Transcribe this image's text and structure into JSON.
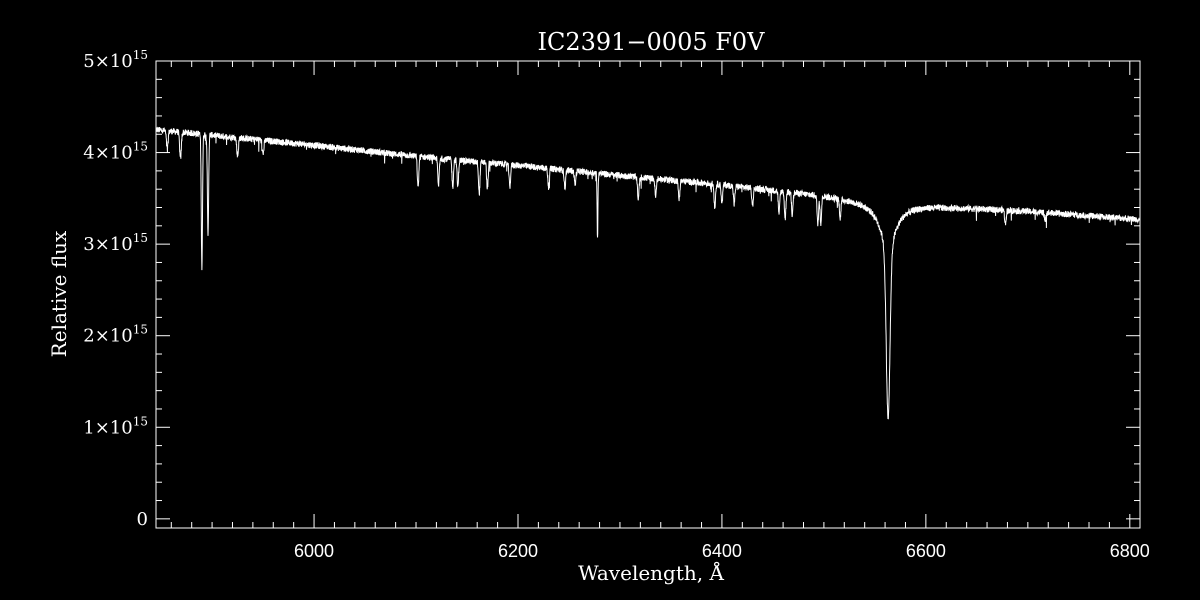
{
  "chart_data": {
    "type": "line",
    "title": "IC2391−0005  F0V",
    "xlabel": "Wavelength, Å",
    "ylabel": "Relative flux",
    "xlim": [
      5845,
      6810
    ],
    "ylim": [
      -0.1,
      5.0
    ],
    "y_exponent": 15,
    "x_major_ticks": [
      6000,
      6200,
      6400,
      6600,
      6800
    ],
    "x_tick_labels": [
      "6000",
      "6200",
      "6400",
      "6600",
      "6800"
    ],
    "x_minor_step": 20,
    "y_major_ticks": [
      0,
      1,
      2,
      3,
      4,
      5
    ],
    "y_tick_labels": [
      {
        "mantissa": "0",
        "exp": ""
      },
      {
        "mantissa": "1×10",
        "exp": "15"
      },
      {
        "mantissa": "2×10",
        "exp": "15"
      },
      {
        "mantissa": "3×10",
        "exp": "15"
      },
      {
        "mantissa": "4×10",
        "exp": "15"
      },
      {
        "mantissa": "5×10",
        "exp": "15"
      }
    ],
    "y_minor_step": 0.2,
    "grid": false,
    "legend": "none",
    "series": [
      {
        "continuum": [
          [
            5845,
            4.25
          ],
          [
            5900,
            4.19
          ],
          [
            6000,
            4.08
          ],
          [
            6100,
            3.96
          ],
          [
            6200,
            3.86
          ],
          [
            6300,
            3.75
          ],
          [
            6400,
            3.65
          ],
          [
            6500,
            3.53
          ],
          [
            6560,
            3.44
          ],
          [
            6600,
            3.42
          ],
          [
            6700,
            3.36
          ],
          [
            6810,
            3.27
          ]
        ],
        "absorption_lines": [
          {
            "x": 5890,
            "depth": 1.45,
            "width": 0.6
          },
          {
            "x": 5896,
            "depth": 1.1,
            "width": 0.6
          },
          {
            "x": 5869,
            "depth": 0.3,
            "width": 0.8
          },
          {
            "x": 5856,
            "depth": 0.2,
            "width": 0.8
          },
          {
            "x": 5925,
            "depth": 0.2,
            "width": 0.8
          },
          {
            "x": 5950,
            "depth": 0.15,
            "width": 0.8
          },
          {
            "x": 6102,
            "depth": 0.35,
            "width": 0.7
          },
          {
            "x": 6122,
            "depth": 0.3,
            "width": 0.7
          },
          {
            "x": 6136,
            "depth": 0.3,
            "width": 0.7
          },
          {
            "x": 6141,
            "depth": 0.3,
            "width": 0.7
          },
          {
            "x": 6162,
            "depth": 0.35,
            "width": 0.7
          },
          {
            "x": 6170,
            "depth": 0.3,
            "width": 0.7
          },
          {
            "x": 6192,
            "depth": 0.25,
            "width": 0.7
          },
          {
            "x": 6230,
            "depth": 0.2,
            "width": 0.7
          },
          {
            "x": 6246,
            "depth": 0.2,
            "width": 0.7
          },
          {
            "x": 6256,
            "depth": 0.15,
            "width": 0.7
          },
          {
            "x": 6278,
            "depth": 0.72,
            "width": 0.4
          },
          {
            "x": 6318,
            "depth": 0.25,
            "width": 0.7
          },
          {
            "x": 6335,
            "depth": 0.2,
            "width": 0.7
          },
          {
            "x": 6358,
            "depth": 0.2,
            "width": 0.7
          },
          {
            "x": 6393,
            "depth": 0.25,
            "width": 0.7
          },
          {
            "x": 6400,
            "depth": 0.2,
            "width": 0.7
          },
          {
            "x": 6412,
            "depth": 0.2,
            "width": 0.7
          },
          {
            "x": 6430,
            "depth": 0.2,
            "width": 0.7
          },
          {
            "x": 6456,
            "depth": 0.25,
            "width": 0.7
          },
          {
            "x": 6462,
            "depth": 0.3,
            "width": 0.7
          },
          {
            "x": 6469,
            "depth": 0.25,
            "width": 0.7
          },
          {
            "x": 6494,
            "depth": 0.3,
            "width": 0.7
          },
          {
            "x": 6497,
            "depth": 0.3,
            "width": 0.7
          },
          {
            "x": 6516,
            "depth": 0.2,
            "width": 0.7
          },
          {
            "x": 6678,
            "depth": 0.15,
            "width": 0.7
          },
          {
            "x": 6717,
            "depth": 0.1,
            "width": 0.7
          }
        ],
        "balmer_line": {
          "x": 6563,
          "min": 1.1,
          "core_width": 1.8,
          "wing_width": 9,
          "wing_depth": 0.5
        },
        "noise": 0.035
      }
    ]
  }
}
